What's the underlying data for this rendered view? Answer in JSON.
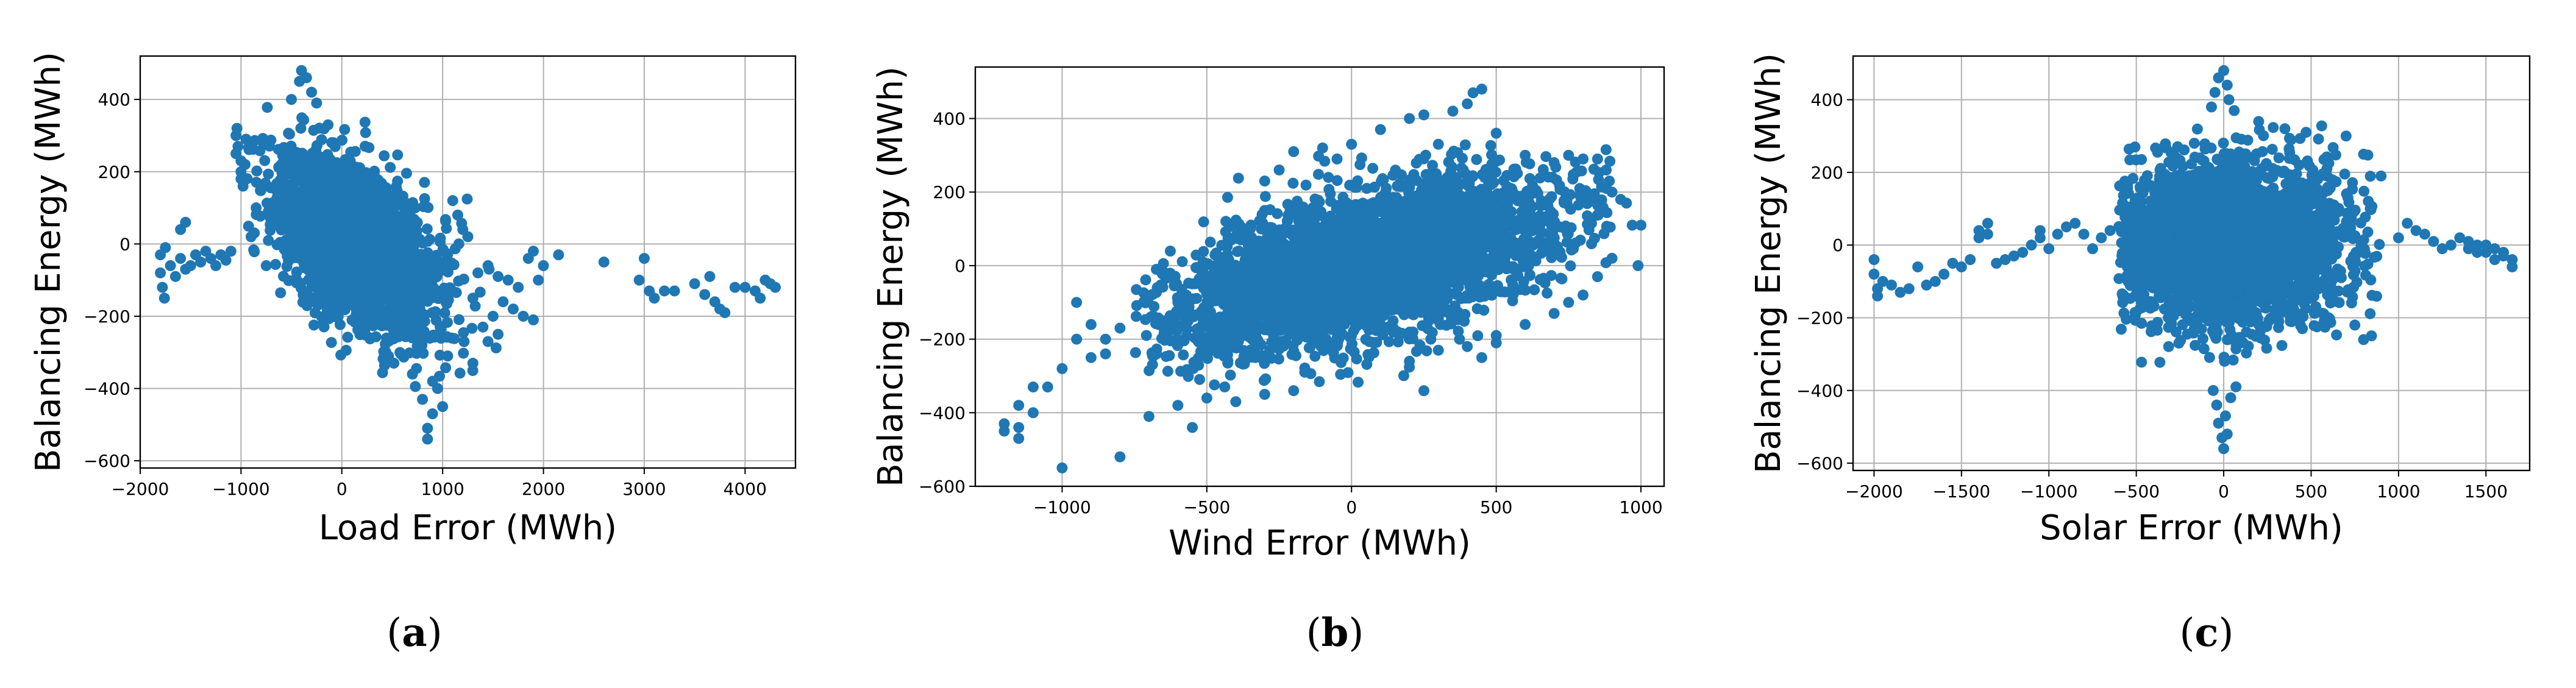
{
  "chart_data": [
    {
      "type": "scatter",
      "panel_label": "a",
      "xlabel": "Load Error (MWh)",
      "ylabel": "Balancing Energy (MWh)",
      "xlim": [
        -2000,
        4500
      ],
      "ylim": [
        -620,
        520
      ],
      "xticks": [
        -2000,
        -1000,
        0,
        1000,
        2000,
        3000,
        4000
      ],
      "yticks": [
        -600,
        -400,
        -200,
        0,
        200,
        400
      ],
      "grid": true,
      "color": "#1f77b4",
      "cluster": {
        "cx": 150,
        "sx": 380,
        "sy": 120,
        "rho": -0.5,
        "n": 2600,
        "xmin": -1150,
        "xmax": 1700,
        "ymin": -420,
        "ymax": 380,
        "seed": 11
      },
      "points": [
        [
          -1800,
          -30
        ],
        [
          -1800,
          -80
        ],
        [
          -1780,
          -120
        ],
        [
          -1760,
          -150
        ],
        [
          -1750,
          -10
        ],
        [
          -1700,
          -60
        ],
        [
          -1650,
          -90
        ],
        [
          -1600,
          -40
        ],
        [
          -1550,
          -70
        ],
        [
          -1500,
          -60
        ],
        [
          -1600,
          40
        ],
        [
          -1550,
          60
        ],
        [
          -1450,
          -30
        ],
        [
          -1400,
          -50
        ],
        [
          -1350,
          -20
        ],
        [
          -1300,
          -40
        ],
        [
          -1250,
          -60
        ],
        [
          -1200,
          -30
        ],
        [
          -1150,
          -45
        ],
        [
          -1100,
          -20
        ],
        [
          -1050,
          250
        ],
        [
          -1050,
          300
        ],
        [
          -1040,
          320
        ],
        [
          -1030,
          270
        ],
        [
          -1000,
          200
        ],
        [
          -1000,
          230
        ],
        [
          -1000,
          180
        ],
        [
          -980,
          160
        ],
        [
          -960,
          220
        ],
        [
          -950,
          290
        ],
        [
          -400,
          480
        ],
        [
          -420,
          450
        ],
        [
          -350,
          460
        ],
        [
          -300,
          420
        ],
        [
          -500,
          400
        ],
        [
          -250,
          390
        ],
        [
          1000,
          -450
        ],
        [
          900,
          -470
        ],
        [
          850,
          -540
        ],
        [
          850,
          -510
        ],
        [
          800,
          -430
        ],
        [
          900,
          -380
        ],
        [
          950,
          -400
        ],
        [
          700,
          -360
        ],
        [
          1050,
          -310
        ],
        [
          1300,
          -330
        ],
        [
          1500,
          -200
        ],
        [
          1600,
          -160
        ],
        [
          1700,
          -180
        ],
        [
          1800,
          -200
        ],
        [
          1900,
          -210
        ],
        [
          1850,
          -40
        ],
        [
          1900,
          -20
        ],
        [
          2000,
          -60
        ],
        [
          1950,
          -100
        ],
        [
          1750,
          -120
        ],
        [
          1650,
          -100
        ],
        [
          1550,
          -90
        ],
        [
          1450,
          -270
        ],
        [
          1400,
          -230
        ],
        [
          1550,
          -250
        ],
        [
          1300,
          -150
        ],
        [
          1450,
          -60
        ],
        [
          1350,
          -80
        ],
        [
          2150,
          -30
        ],
        [
          2600,
          -50
        ],
        [
          2950,
          -100
        ],
        [
          3000,
          -40
        ],
        [
          3050,
          -130
        ],
        [
          3100,
          -150
        ],
        [
          3200,
          -130
        ],
        [
          3300,
          -130
        ],
        [
          3500,
          -110
        ],
        [
          3600,
          -140
        ],
        [
          3650,
          -90
        ],
        [
          3700,
          -160
        ],
        [
          3750,
          -180
        ],
        [
          3800,
          -190
        ],
        [
          3900,
          -120
        ],
        [
          4000,
          -120
        ],
        [
          4100,
          -130
        ],
        [
          4150,
          -150
        ],
        [
          4200,
          -100
        ],
        [
          4300,
          -120
        ],
        [
          4250,
          -110
        ],
        [
          1100,
          120
        ],
        [
          1150,
          80
        ],
        [
          1200,
          40
        ],
        [
          1250,
          20
        ],
        [
          -700,
          50
        ],
        [
          -650,
          80
        ],
        [
          -850,
          100
        ],
        [
          -900,
          20
        ],
        [
          -750,
          -60
        ]
      ]
    },
    {
      "type": "scatter",
      "panel_label": "b",
      "xlabel": "Wind Error (MWh)",
      "ylabel": "Balancing Energy (MWh)",
      "xlim": [
        -1300,
        1080
      ],
      "ylim": [
        -600,
        540
      ],
      "xticks": [
        -1000,
        -500,
        0,
        500,
        1000
      ],
      "yticks": [
        -600,
        -400,
        -200,
        0,
        200,
        400
      ],
      "grid": true,
      "color": "#1f77b4",
      "cluster": {
        "cx": 50,
        "sx": 330,
        "sy": 115,
        "rho": 0.55,
        "n": 3600,
        "xmin": -750,
        "xmax": 900,
        "ymin": -330,
        "ymax": 330,
        "seed": 23
      },
      "points": [
        [
          -1200,
          -450
        ],
        [
          -1200,
          -430
        ],
        [
          -1150,
          -440
        ],
        [
          -1150,
          -470
        ],
        [
          -1150,
          -380
        ],
        [
          -1100,
          -400
        ],
        [
          -1100,
          -330
        ],
        [
          -1050,
          -330
        ],
        [
          -1000,
          -550
        ],
        [
          -1000,
          -280
        ],
        [
          -950,
          -100
        ],
        [
          -950,
          -200
        ],
        [
          -900,
          -250
        ],
        [
          -900,
          -160
        ],
        [
          -850,
          -240
        ],
        [
          -800,
          -520
        ],
        [
          -850,
          -200
        ],
        [
          -800,
          -170
        ],
        [
          -700,
          -410
        ],
        [
          -600,
          -380
        ],
        [
          -550,
          -440
        ],
        [
          -500,
          -360
        ],
        [
          -400,
          -370
        ],
        [
          -300,
          -350
        ],
        [
          -200,
          -340
        ],
        [
          100,
          370
        ],
        [
          200,
          400
        ],
        [
          250,
          410
        ],
        [
          300,
          330
        ],
        [
          350,
          420
        ],
        [
          400,
          440
        ],
        [
          450,
          480
        ],
        [
          420,
          470
        ],
        [
          500,
          360
        ],
        [
          600,
          300
        ],
        [
          700,
          280
        ],
        [
          750,
          300
        ],
        [
          800,
          290
        ],
        [
          850,
          290
        ],
        [
          880,
          260
        ],
        [
          900,
          200
        ],
        [
          930,
          180
        ],
        [
          950,
          170
        ],
        [
          970,
          110
        ],
        [
          1000,
          110
        ],
        [
          990,
          0
        ],
        [
          900,
          20
        ],
        [
          850,
          -30
        ],
        [
          800,
          -80
        ],
        [
          750,
          -100
        ],
        [
          700,
          -130
        ],
        [
          600,
          -160
        ],
        [
          500,
          -190
        ],
        [
          400,
          -220
        ],
        [
          300,
          -230
        ],
        [
          200,
          -260
        ],
        [
          500,
          -210
        ],
        [
          450,
          -250
        ],
        [
          250,
          -340
        ],
        [
          -200,
          310
        ],
        [
          -250,
          260
        ],
        [
          -300,
          230
        ],
        [
          -100,
          320
        ],
        [
          0,
          330
        ],
        [
          -50,
          290
        ],
        [
          700,
          60
        ],
        [
          -600,
          -100
        ],
        [
          -650,
          -150
        ],
        [
          -500,
          -50
        ],
        [
          -400,
          0
        ],
        [
          -400,
          80
        ],
        [
          -350,
          100
        ],
        [
          -300,
          150
        ],
        [
          650,
          100
        ]
      ]
    },
    {
      "type": "scatter",
      "panel_label": "c",
      "xlabel": "Solar Error (MWh)",
      "ylabel": "Balancing Energy (MWh)",
      "xlim": [
        -2120,
        1750
      ],
      "ylim": [
        -620,
        520
      ],
      "xticks": [
        -2000,
        -1500,
        -1000,
        -500,
        0,
        500,
        1000,
        1500
      ],
      "yticks": [
        -600,
        -400,
        -200,
        0,
        200,
        400
      ],
      "grid": true,
      "color": "#1f77b4",
      "cluster": {
        "cx": 0,
        "sx": 330,
        "sy": 110,
        "rho": 0.0,
        "n": 3000,
        "xmin": -600,
        "xmax": 900,
        "ymin": -330,
        "ymax": 330,
        "seed": 37
      },
      "points": [
        [
          -2000,
          -40
        ],
        [
          -2000,
          -80
        ],
        [
          -1980,
          -120
        ],
        [
          -1980,
          -140
        ],
        [
          -1950,
          -100
        ],
        [
          -1900,
          -110
        ],
        [
          -1850,
          -130
        ],
        [
          -1800,
          -120
        ],
        [
          -1750,
          -60
        ],
        [
          -1700,
          -110
        ],
        [
          -1650,
          -100
        ],
        [
          -1600,
          -80
        ],
        [
          -1550,
          -50
        ],
        [
          -1500,
          -60
        ],
        [
          -1450,
          -40
        ],
        [
          -1400,
          20
        ],
        [
          -1400,
          40
        ],
        [
          -1350,
          60
        ],
        [
          -1350,
          30
        ],
        [
          -1300,
          -50
        ],
        [
          -1250,
          -40
        ],
        [
          -1200,
          -30
        ],
        [
          -1150,
          -20
        ],
        [
          -1100,
          0
        ],
        [
          -1050,
          20
        ],
        [
          -1050,
          40
        ],
        [
          -1000,
          -10
        ],
        [
          -950,
          30
        ],
        [
          -900,
          50
        ],
        [
          -850,
          60
        ],
        [
          -800,
          30
        ],
        [
          -750,
          -10
        ],
        [
          -700,
          20
        ],
        [
          -650,
          40
        ],
        [
          0,
          480
        ],
        [
          -30,
          460
        ],
        [
          20,
          440
        ],
        [
          -50,
          420
        ],
        [
          30,
          400
        ],
        [
          -70,
          380
        ],
        [
          60,
          370
        ],
        [
          0,
          -560
        ],
        [
          -10,
          -530
        ],
        [
          20,
          -520
        ],
        [
          -30,
          -490
        ],
        [
          10,
          -470
        ],
        [
          -40,
          -440
        ],
        [
          40,
          -420
        ],
        [
          -60,
          -400
        ],
        [
          70,
          -390
        ],
        [
          1000,
          20
        ],
        [
          1050,
          60
        ],
        [
          1100,
          40
        ],
        [
          1150,
          30
        ],
        [
          1200,
          10
        ],
        [
          1250,
          -10
        ],
        [
          1300,
          0
        ],
        [
          1350,
          20
        ],
        [
          1400,
          -10
        ],
        [
          1450,
          0
        ],
        [
          1500,
          -20
        ],
        [
          1550,
          -10
        ],
        [
          1600,
          -30
        ],
        [
          1650,
          -40
        ],
        [
          1650,
          -60
        ],
        [
          1600,
          -20
        ],
        [
          1550,
          -40
        ],
        [
          1500,
          0
        ],
        [
          1450,
          -20
        ],
        [
          1400,
          10
        ],
        [
          800,
          -260
        ],
        [
          750,
          -220
        ],
        [
          600,
          -200
        ],
        [
          450,
          -230
        ],
        [
          500,
          150
        ],
        [
          700,
          300
        ],
        [
          800,
          250
        ],
        [
          900,
          190
        ],
        [
          350,
          320
        ],
        [
          200,
          340
        ]
      ]
    }
  ]
}
